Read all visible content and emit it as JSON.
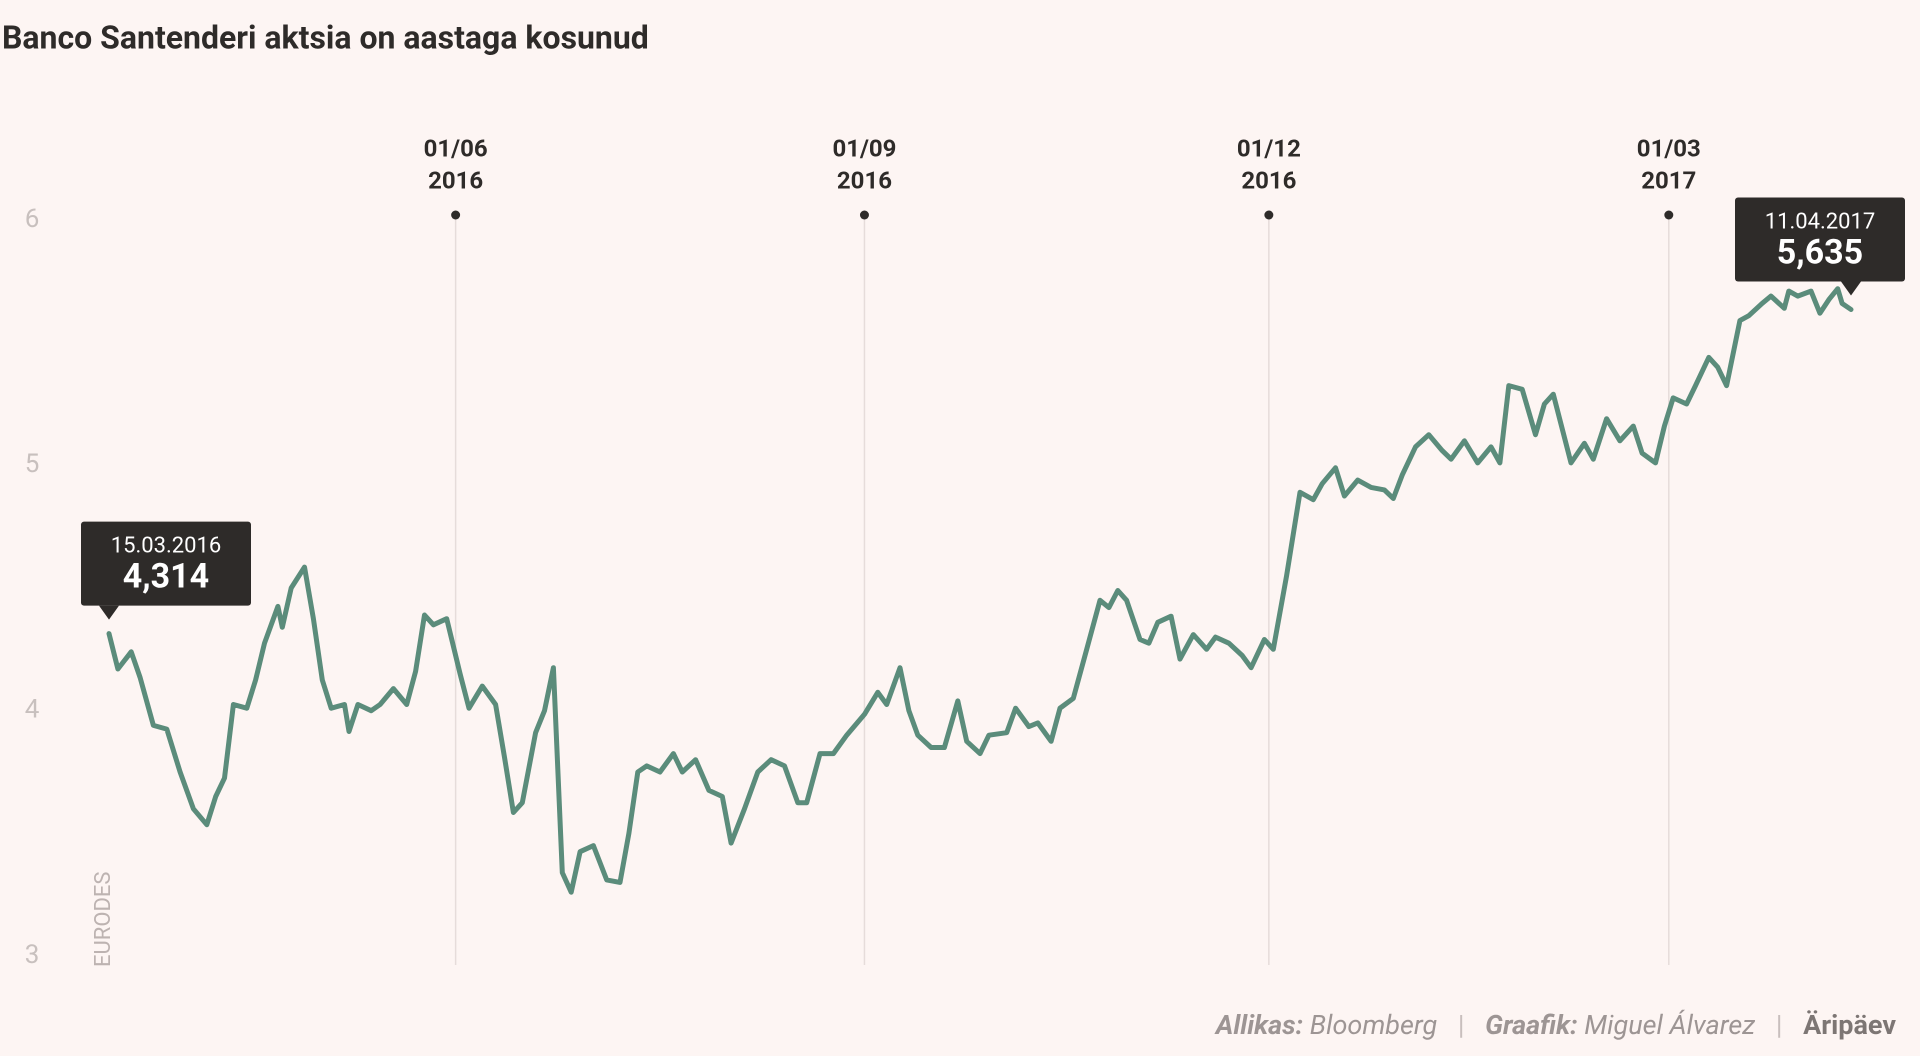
{
  "chart_data": {
    "type": "line",
    "title": "Banco Santenderi aktsia on aastaga kosunud",
    "y_label": "EURODES",
    "color": "#5b8c7b",
    "x": [
      "2016-03-15",
      "2016-03-17",
      "2016-03-20",
      "2016-03-22",
      "2016-03-25",
      "2016-03-28",
      "2016-03-31",
      "2016-04-03",
      "2016-04-06",
      "2016-04-08",
      "2016-04-10",
      "2016-04-12",
      "2016-04-15",
      "2016-04-17",
      "2016-04-19",
      "2016-04-22",
      "2016-04-23",
      "2016-04-25",
      "2016-04-28",
      "2016-04-30",
      "2016-05-02",
      "2016-05-04",
      "2016-05-07",
      "2016-05-08",
      "2016-05-10",
      "2016-05-13",
      "2016-05-15",
      "2016-05-18",
      "2016-05-21",
      "2016-05-23",
      "2016-05-25",
      "2016-05-27",
      "2016-05-30",
      "2016-06-02",
      "2016-06-04",
      "2016-06-07",
      "2016-06-10",
      "2016-06-12",
      "2016-06-14",
      "2016-06-16",
      "2016-06-19",
      "2016-06-21",
      "2016-06-23",
      "2016-06-25",
      "2016-06-27",
      "2016-06-29",
      "2016-07-02",
      "2016-07-05",
      "2016-07-08",
      "2016-07-10",
      "2016-07-12",
      "2016-07-14",
      "2016-07-17",
      "2016-07-20",
      "2016-07-22",
      "2016-07-25",
      "2016-07-28",
      "2016-07-31",
      "2016-08-02",
      "2016-08-05",
      "2016-08-08",
      "2016-08-11",
      "2016-08-14",
      "2016-08-17",
      "2016-08-19",
      "2016-08-22",
      "2016-08-25",
      "2016-08-28",
      "2016-09-01",
      "2016-09-04",
      "2016-09-06",
      "2016-09-09",
      "2016-09-11",
      "2016-09-13",
      "2016-09-16",
      "2016-09-19",
      "2016-09-22",
      "2016-09-24",
      "2016-09-27",
      "2016-09-29",
      "2016-10-03",
      "2016-10-05",
      "2016-10-08",
      "2016-10-10",
      "2016-10-13",
      "2016-10-15",
      "2016-10-18",
      "2016-10-21",
      "2016-10-24",
      "2016-10-26",
      "2016-10-28",
      "2016-10-30",
      "2016-11-02",
      "2016-11-04",
      "2016-11-06",
      "2016-11-09",
      "2016-11-11",
      "2016-11-14",
      "2016-11-17",
      "2016-11-19",
      "2016-11-22",
      "2016-11-25",
      "2016-11-27",
      "2016-11-30",
      "2016-12-02",
      "2016-12-05",
      "2016-12-08",
      "2016-12-11",
      "2016-12-13",
      "2016-12-16",
      "2016-12-18",
      "2016-12-21",
      "2016-12-24",
      "2016-12-27",
      "2016-12-29",
      "2016-12-31",
      "2017-01-03",
      "2017-01-06",
      "2017-01-09",
      "2017-01-11",
      "2017-01-14",
      "2017-01-17",
      "2017-01-20",
      "2017-01-22",
      "2017-01-24",
      "2017-01-27",
      "2017-01-30",
      "2017-02-01",
      "2017-02-03",
      "2017-02-07",
      "2017-02-10",
      "2017-02-12",
      "2017-02-15",
      "2017-02-18",
      "2017-02-21",
      "2017-02-23",
      "2017-02-26",
      "2017-02-28",
      "2017-03-02",
      "2017-03-05",
      "2017-03-07",
      "2017-03-10",
      "2017-03-12",
      "2017-03-14",
      "2017-03-17",
      "2017-03-19",
      "2017-03-22",
      "2017-03-24",
      "2017-03-27",
      "2017-03-28",
      "2017-03-30",
      "2017-04-02",
      "2017-04-04",
      "2017-04-06",
      "2017-04-08",
      "2017-04-09",
      "2017-04-11"
    ],
    "values": [
      4.314,
      4.17,
      4.24,
      4.135,
      3.94,
      3.925,
      3.75,
      3.6,
      3.535,
      3.65,
      3.725,
      4.025,
      4.01,
      4.125,
      4.275,
      4.425,
      4.34,
      4.5,
      4.585,
      4.375,
      4.125,
      4.01,
      4.025,
      3.915,
      4.025,
      4.0,
      4.025,
      4.09,
      4.025,
      4.16,
      4.39,
      4.35,
      4.375,
      4.15,
      4.01,
      4.1,
      4.025,
      3.81,
      3.585,
      3.625,
      3.91,
      4.0,
      4.175,
      3.34,
      3.26,
      3.425,
      3.45,
      3.31,
      3.3,
      3.5,
      3.75,
      3.775,
      3.75,
      3.825,
      3.75,
      3.8,
      3.675,
      3.65,
      3.46,
      3.6,
      3.75,
      3.8,
      3.775,
      3.625,
      3.625,
      3.825,
      3.825,
      3.9,
      3.985,
      4.075,
      4.025,
      4.175,
      4.0,
      3.9,
      3.85,
      3.85,
      4.04,
      3.875,
      3.825,
      3.9,
      3.91,
      4.01,
      3.935,
      3.95,
      3.875,
      4.01,
      4.05,
      4.25,
      4.45,
      4.42,
      4.49,
      4.45,
      4.29,
      4.275,
      4.36,
      4.385,
      4.21,
      4.31,
      4.25,
      4.3,
      4.275,
      4.225,
      4.175,
      4.29,
      4.25,
      4.55,
      4.89,
      4.86,
      4.925,
      4.99,
      4.875,
      4.94,
      4.91,
      4.9,
      4.865,
      4.96,
      5.075,
      5.125,
      5.06,
      5.025,
      5.1,
      5.01,
      5.075,
      5.01,
      5.325,
      5.31,
      5.125,
      5.25,
      5.29,
      5.01,
      5.09,
      5.025,
      5.19,
      5.1,
      5.16,
      5.05,
      5.01,
      5.16,
      5.275,
      5.25,
      5.325,
      5.44,
      5.4,
      5.325,
      5.59,
      5.61,
      5.66,
      5.69,
      5.64,
      5.71,
      5.69,
      5.71,
      5.62,
      5.675,
      5.72,
      5.66,
      5.635
    ],
    "xlim": [
      "2016-03-15",
      "2017-04-11"
    ],
    "xticks": [
      {
        "value": "2016-06-01",
        "label": [
          "01/06",
          "2016"
        ]
      },
      {
        "value": "2016-09-01",
        "label": [
          "01/09",
          "2016"
        ]
      },
      {
        "value": "2016-12-01",
        "label": [
          "01/12",
          "2016"
        ]
      },
      {
        "value": "2017-03-01",
        "label": [
          "01/03",
          "2017"
        ]
      }
    ],
    "ylim": [
      3,
      6
    ],
    "yticks": [
      3,
      4,
      5,
      6
    ],
    "annotations": [
      {
        "date": "15.03.2016",
        "value": 4.314,
        "label": "4,314",
        "side": "left"
      },
      {
        "date": "11.04.2017",
        "value": 5.635,
        "label": "5,635",
        "side": "right"
      }
    ]
  },
  "footer": {
    "source_label": "Allikas:",
    "source": "Bloomberg",
    "separator": "|",
    "credit_label": "Graafik:",
    "credit": "Miguel Álvarez",
    "brand": "Äripäev"
  }
}
